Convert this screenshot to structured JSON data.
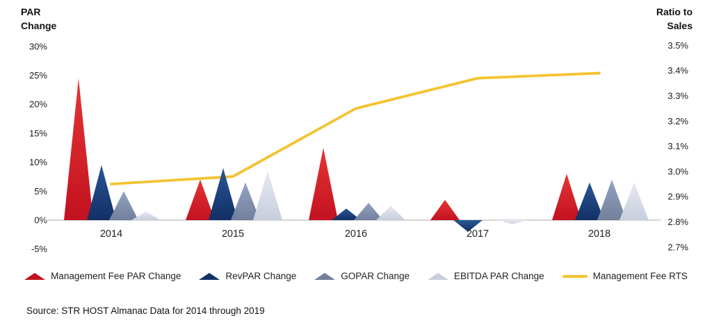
{
  "source_note": "Source: STR HOST Almanac Data for 2014 through 2019",
  "chart_data": {
    "type": "combo",
    "subtype": "triangle-peaks-with-line",
    "categories": [
      "2014",
      "2015",
      "2016",
      "2017",
      "2018"
    ],
    "left_axis": {
      "label": "PAR Change",
      "ticks": [
        "30%",
        "25%",
        "20%",
        "15%",
        "10%",
        "5%",
        "0%",
        "-5%"
      ],
      "min": -5,
      "max": 30,
      "unit": "%"
    },
    "right_axis": {
      "label": "Ratio to Sales",
      "ticks": [
        "3.5%",
        "3.4%",
        "3.3%",
        "3.2%",
        "3.1%",
        "3.0%",
        "2.9%",
        "2.8%",
        "2.7%"
      ],
      "min": 2.7,
      "max": 3.5,
      "unit": "%"
    },
    "series": [
      {
        "name": "Management Fee PAR Change",
        "type": "triangle",
        "axis": "left",
        "color_top": "#e43535",
        "color_bottom": "#c31220",
        "values": [
          24.5,
          7,
          12.5,
          3.5,
          8
        ]
      },
      {
        "name": "RevPAR Change",
        "type": "triangle",
        "axis": "left",
        "color_top": "#2a5796",
        "color_bottom": "#122f66",
        "values": [
          9.5,
          9,
          2,
          -2,
          6.5
        ]
      },
      {
        "name": "GOPAR Change",
        "type": "triangle",
        "axis": "left",
        "color_top": "#94a3c0",
        "color_bottom": "#72809d",
        "values": [
          5,
          6.5,
          3,
          0,
          7
        ]
      },
      {
        "name": "EBITDA PAR Change",
        "type": "triangle",
        "axis": "left",
        "color_top": "#e7eaf2",
        "color_bottom": "#c7cedd",
        "values": [
          1.5,
          8.5,
          2.5,
          -0.7,
          6.5
        ]
      },
      {
        "name": "Management Fee RTS",
        "type": "line",
        "axis": "right",
        "color": "#f4c331",
        "values": [
          2.95,
          2.98,
          3.25,
          3.37,
          3.39
        ]
      }
    ],
    "legend_position": "bottom",
    "grid": false,
    "baseline_color": "#c8c8c8",
    "text_color": "#1b1b1b"
  }
}
